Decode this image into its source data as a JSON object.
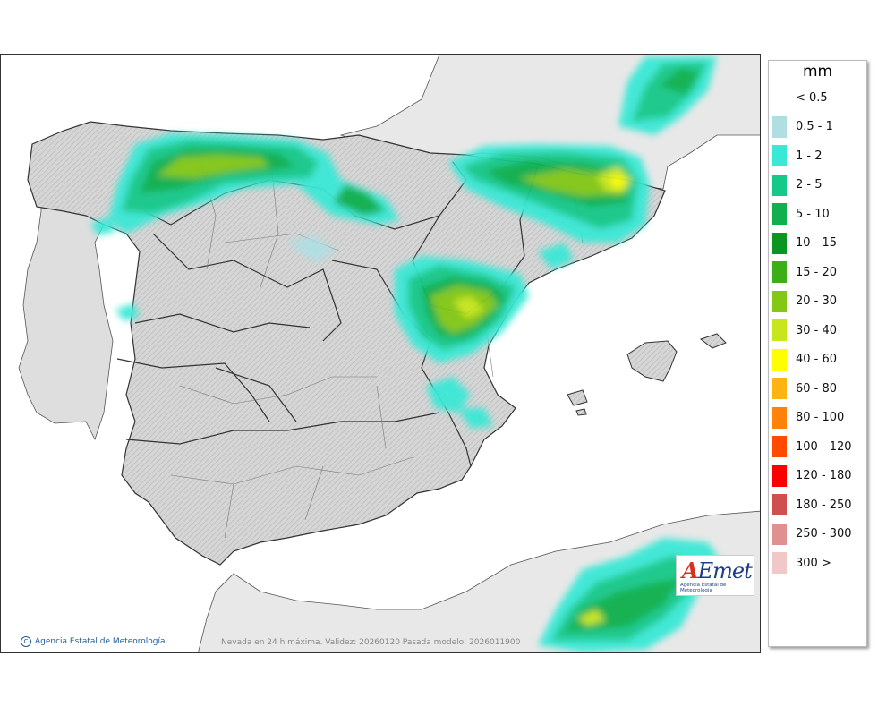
{
  "legend": {
    "unit": "mm",
    "classes": [
      {
        "label": "< 0.5",
        "color": "#ffffff"
      },
      {
        "label": "0.5 - 1",
        "color": "#b0dfe3"
      },
      {
        "label": "1 - 2",
        "color": "#3ae8d6"
      },
      {
        "label": "2 - 5",
        "color": "#14c98a"
      },
      {
        "label": "5 - 10",
        "color": "#10b04e"
      },
      {
        "label": "10 - 15",
        "color": "#0a9620"
      },
      {
        "label": "15 - 20",
        "color": "#3cae18"
      },
      {
        "label": "20 - 30",
        "color": "#82c814"
      },
      {
        "label": "30 - 40",
        "color": "#c8e61e"
      },
      {
        "label": "40 - 60",
        "color": "#ffff00"
      },
      {
        "label": "60 - 80",
        "color": "#ffb414"
      },
      {
        "label": "80 - 100",
        "color": "#ff820a"
      },
      {
        "label": "100 - 120",
        "color": "#ff4a00"
      },
      {
        "label": "120 - 180",
        "color": "#ff0000"
      },
      {
        "label": "180 - 250",
        "color": "#d05050"
      },
      {
        "label": "250 - 300",
        "color": "#e09090"
      },
      {
        "label": "300 >",
        "color": "#f0c8c8"
      }
    ]
  },
  "map": {
    "caption": "Nevada en 24 h máxima. Validez: 20260120 Pasada modelo: 2026011900",
    "credit": "Agencia Estatal de Meteorología",
    "logo": {
      "main_a": "A",
      "main_rest": "Emet",
      "sub": "Agencia Estatal de Meteorología"
    },
    "land_color": "#d9d9d9",
    "foreign_land_color": "#e6e6e6",
    "sea_color": "#ffffff",
    "border_color": "#333333"
  }
}
